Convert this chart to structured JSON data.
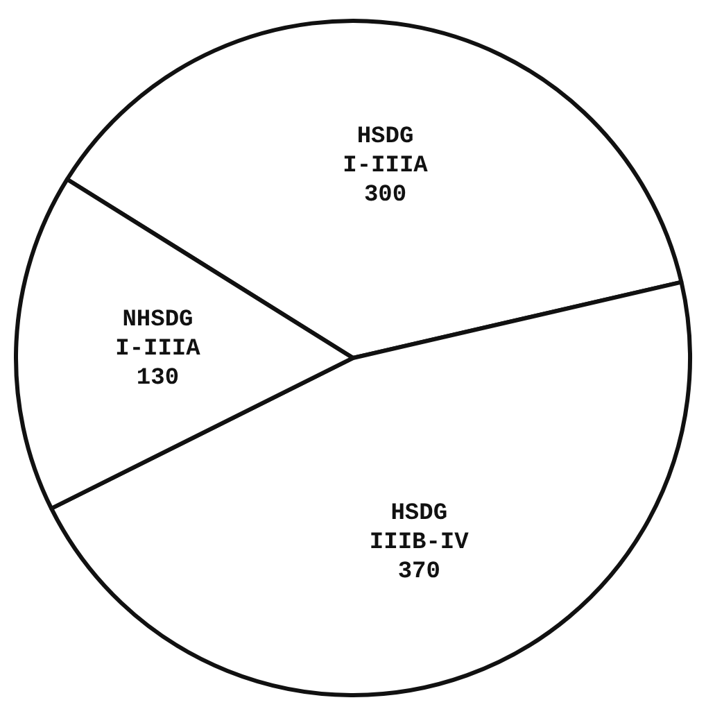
{
  "chart_data": {
    "type": "pie",
    "categories": [
      "HSDG I-IIIA",
      "HSDG IIIB-IV",
      "NHSDG I-IIIA"
    ],
    "values": [
      300,
      370,
      130
    ],
    "colors": [
      "#ffffff",
      "#ffffff",
      "#ffffff"
    ],
    "data_labels": true,
    "legend": false
  }
}
